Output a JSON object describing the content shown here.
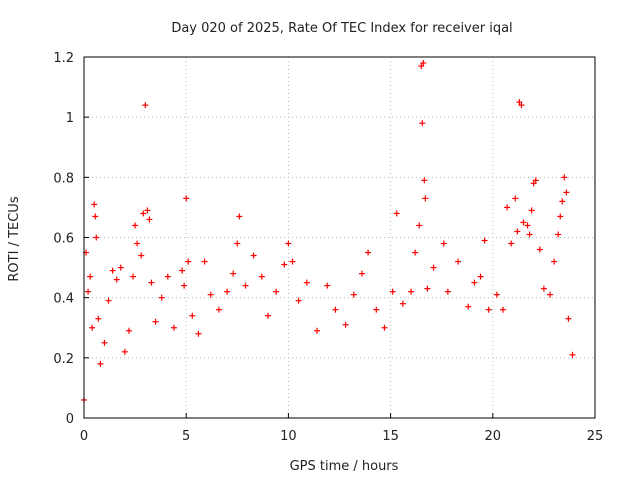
{
  "chart_data": {
    "type": "scatter",
    "title": "Day 020 of 2025, Rate Of TEC Index for receiver iqal",
    "xlabel": "GPS time / hours",
    "ylabel": "ROTI / TECUs",
    "xlim": [
      0,
      25
    ],
    "ylim": [
      0,
      1.2
    ],
    "xticks": [
      0,
      5,
      10,
      15,
      20,
      25
    ],
    "yticks": [
      0,
      0.2,
      0.4,
      0.6,
      0.8,
      1,
      1.2
    ],
    "xtick_labels": [
      "0",
      "5",
      "10",
      "15",
      "20",
      "25"
    ],
    "ytick_labels": [
      "0",
      "0.2",
      "0.4",
      "0.6",
      "0.8",
      "1",
      "1.2"
    ],
    "grid": true,
    "legend": "none",
    "marker": "plus",
    "color": "#ff0000",
    "series": [
      {
        "points": [
          [
            0.0,
            0.06
          ],
          [
            0.1,
            0.55
          ],
          [
            0.2,
            0.42
          ],
          [
            0.3,
            0.47
          ],
          [
            0.4,
            0.3
          ],
          [
            0.5,
            0.71
          ],
          [
            0.55,
            0.67
          ],
          [
            0.6,
            0.6
          ],
          [
            0.7,
            0.33
          ],
          [
            0.8,
            0.18
          ],
          [
            1.0,
            0.25
          ],
          [
            1.2,
            0.39
          ],
          [
            1.4,
            0.49
          ],
          [
            1.6,
            0.46
          ],
          [
            1.8,
            0.5
          ],
          [
            2.0,
            0.22
          ],
          [
            2.2,
            0.29
          ],
          [
            2.4,
            0.47
          ],
          [
            2.5,
            0.64
          ],
          [
            2.6,
            0.58
          ],
          [
            2.8,
            0.54
          ],
          [
            2.9,
            0.68
          ],
          [
            3.0,
            1.04
          ],
          [
            3.1,
            0.69
          ],
          [
            3.2,
            0.66
          ],
          [
            3.3,
            0.45
          ],
          [
            3.5,
            0.32
          ],
          [
            3.8,
            0.4
          ],
          [
            4.1,
            0.47
          ],
          [
            4.4,
            0.3
          ],
          [
            4.8,
            0.49
          ],
          [
            4.9,
            0.44
          ],
          [
            5.0,
            0.73
          ],
          [
            5.1,
            0.52
          ],
          [
            5.3,
            0.34
          ],
          [
            5.6,
            0.28
          ],
          [
            5.9,
            0.52
          ],
          [
            6.2,
            0.41
          ],
          [
            6.6,
            0.36
          ],
          [
            7.0,
            0.42
          ],
          [
            7.3,
            0.48
          ],
          [
            7.5,
            0.58
          ],
          [
            7.6,
            0.67
          ],
          [
            7.9,
            0.44
          ],
          [
            8.3,
            0.54
          ],
          [
            8.7,
            0.47
          ],
          [
            9.0,
            0.34
          ],
          [
            9.4,
            0.42
          ],
          [
            9.8,
            0.51
          ],
          [
            10.0,
            0.58
          ],
          [
            10.2,
            0.52
          ],
          [
            10.5,
            0.39
          ],
          [
            10.9,
            0.45
          ],
          [
            11.4,
            0.29
          ],
          [
            11.9,
            0.44
          ],
          [
            12.3,
            0.36
          ],
          [
            12.8,
            0.31
          ],
          [
            13.2,
            0.41
          ],
          [
            13.6,
            0.48
          ],
          [
            13.9,
            0.55
          ],
          [
            14.3,
            0.36
          ],
          [
            14.7,
            0.3
          ],
          [
            15.1,
            0.42
          ],
          [
            15.3,
            0.68
          ],
          [
            15.6,
            0.38
          ],
          [
            16.0,
            0.42
          ],
          [
            16.2,
            0.55
          ],
          [
            16.4,
            0.64
          ],
          [
            16.5,
            1.17
          ],
          [
            16.55,
            0.98
          ],
          [
            16.6,
            1.18
          ],
          [
            16.65,
            0.79
          ],
          [
            16.7,
            0.73
          ],
          [
            16.8,
            0.43
          ],
          [
            17.1,
            0.5
          ],
          [
            17.6,
            0.58
          ],
          [
            17.8,
            0.42
          ],
          [
            18.3,
            0.52
          ],
          [
            18.8,
            0.37
          ],
          [
            19.1,
            0.45
          ],
          [
            19.4,
            0.47
          ],
          [
            19.6,
            0.59
          ],
          [
            19.8,
            0.36
          ],
          [
            20.2,
            0.41
          ],
          [
            20.5,
            0.36
          ],
          [
            20.7,
            0.7
          ],
          [
            20.9,
            0.58
          ],
          [
            21.1,
            0.73
          ],
          [
            21.2,
            0.62
          ],
          [
            21.3,
            1.05
          ],
          [
            21.4,
            1.04
          ],
          [
            21.5,
            0.65
          ],
          [
            21.7,
            0.64
          ],
          [
            21.8,
            0.61
          ],
          [
            21.9,
            0.69
          ],
          [
            22.0,
            0.78
          ],
          [
            22.1,
            0.79
          ],
          [
            22.3,
            0.56
          ],
          [
            22.5,
            0.43
          ],
          [
            22.8,
            0.41
          ],
          [
            23.0,
            0.52
          ],
          [
            23.2,
            0.61
          ],
          [
            23.3,
            0.67
          ],
          [
            23.4,
            0.72
          ],
          [
            23.5,
            0.8
          ],
          [
            23.6,
            0.75
          ],
          [
            23.7,
            0.33
          ],
          [
            23.9,
            0.21
          ]
        ]
      }
    ]
  }
}
